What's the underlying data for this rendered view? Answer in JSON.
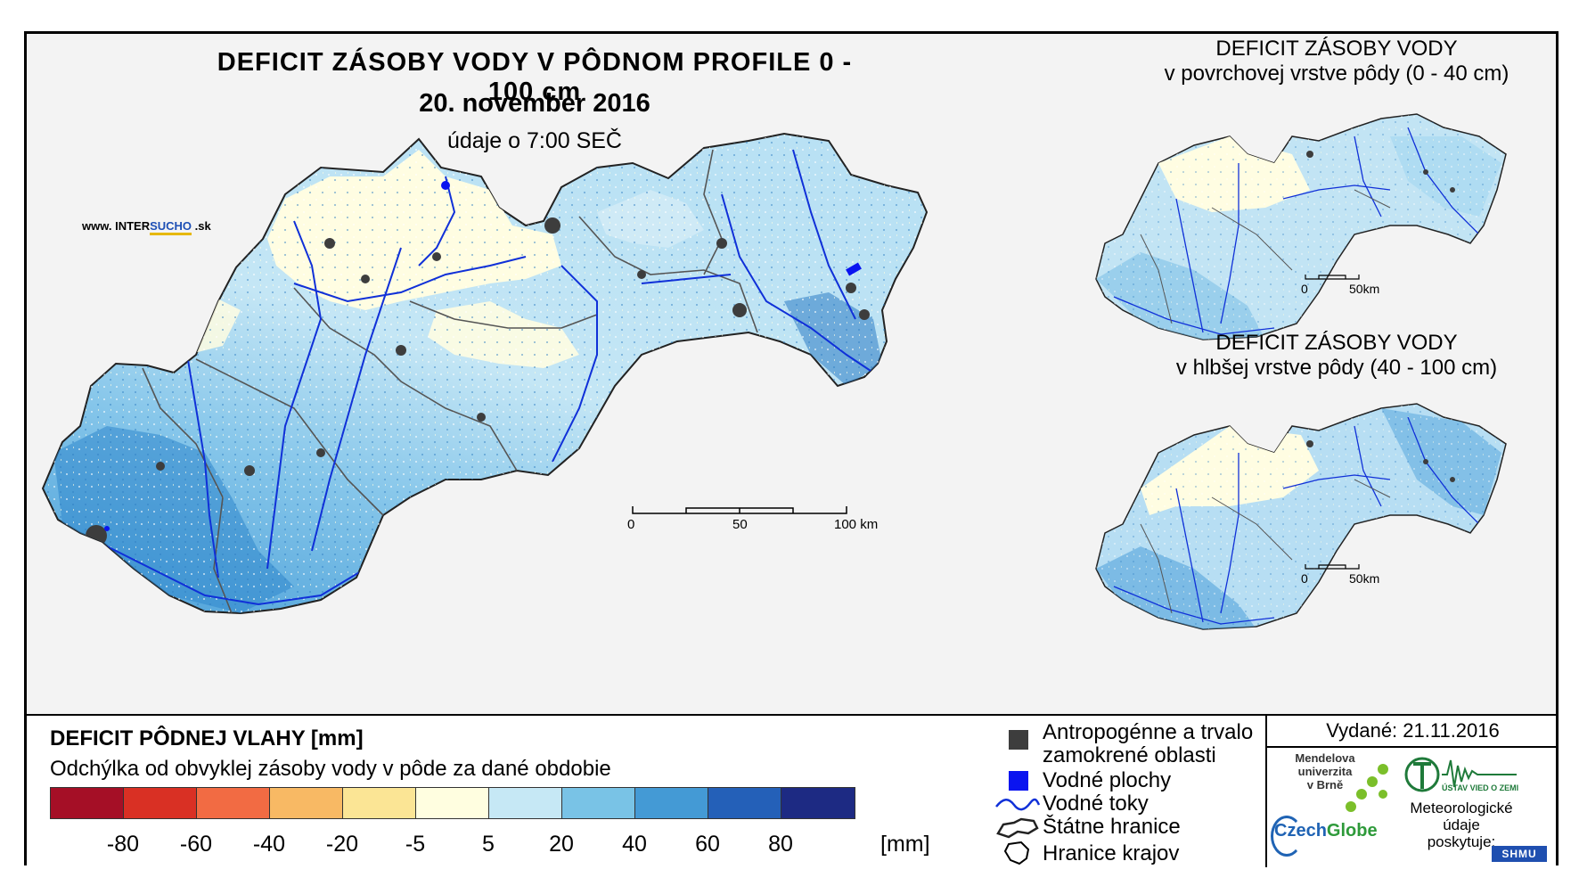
{
  "main_map": {
    "title": "DEFICIT ZÁSOBY VODY V PÔDNOM PROFILE 0 - 100 cm",
    "date": "20. november 2016",
    "time": "údaje o 7:00 SEČ",
    "website_prefix": "www. INTER",
    "website_highlight": "SUCHO",
    "website_suffix": " .sk",
    "scale": {
      "labels": [
        "0",
        "50",
        "100 km"
      ]
    }
  },
  "inset_top": {
    "title_line1": "DEFICIT ZÁSOBY VODY",
    "title_line2": "v povrchovej vrstve pôdy (0 - 40 cm)",
    "scale": {
      "labels": [
        "0",
        "50km"
      ]
    }
  },
  "inset_bottom": {
    "title_line1": "DEFICIT ZÁSOBY VODY",
    "title_line2": "v hlbšej vrstve pôdy (40 - 100 cm)",
    "scale": {
      "labels": [
        "0",
        "50km"
      ]
    }
  },
  "legend": {
    "title": "DEFICIT PÔDNEJ VLAHY [mm]",
    "subtitle": "Odchýlka od obvyklej zásoby vody v pôde za dané obdobie",
    "colors": [
      "#a50f26",
      "#d93024",
      "#f26b43",
      "#f8b964",
      "#fbe595",
      "#fffee0",
      "#c6e8f5",
      "#79c3e6",
      "#449ad5",
      "#2460b8",
      "#1d2a83"
    ],
    "ticks": [
      "-80",
      "-60",
      "-40",
      "-20",
      "-5",
      "5",
      "20",
      "40",
      "60",
      "80"
    ],
    "unit": "[mm]"
  },
  "symbols": {
    "urban": "Antropogénne a trvalo zamokrené oblasti",
    "urban_line1": "Antropogénne a trvalo",
    "urban_line2": "zamokrené oblasti",
    "water_bodies": "Vodné plochy",
    "rivers": "Vodné toky",
    "state_border": "Štátne hranice",
    "region_border": "Hranice krajov",
    "urban_color": "#3d3d3d",
    "water_color": "#0a14f0",
    "river_color": "#1030d8"
  },
  "info": {
    "issued": "Vydané: 21.11.2016",
    "mendel_line1": "Mendelova",
    "mendel_line2": "univerzita",
    "mendel_line3": "v Brně",
    "czechglobe_a": "Czech",
    "czechglobe_b": "Globe",
    "met_line1": "Meteorologické",
    "met_line2": "údaje",
    "met_line3": "poskytuje:",
    "uvoz": "ÚSTAV VIED O ZEMI",
    "shmu": "SHMU"
  }
}
